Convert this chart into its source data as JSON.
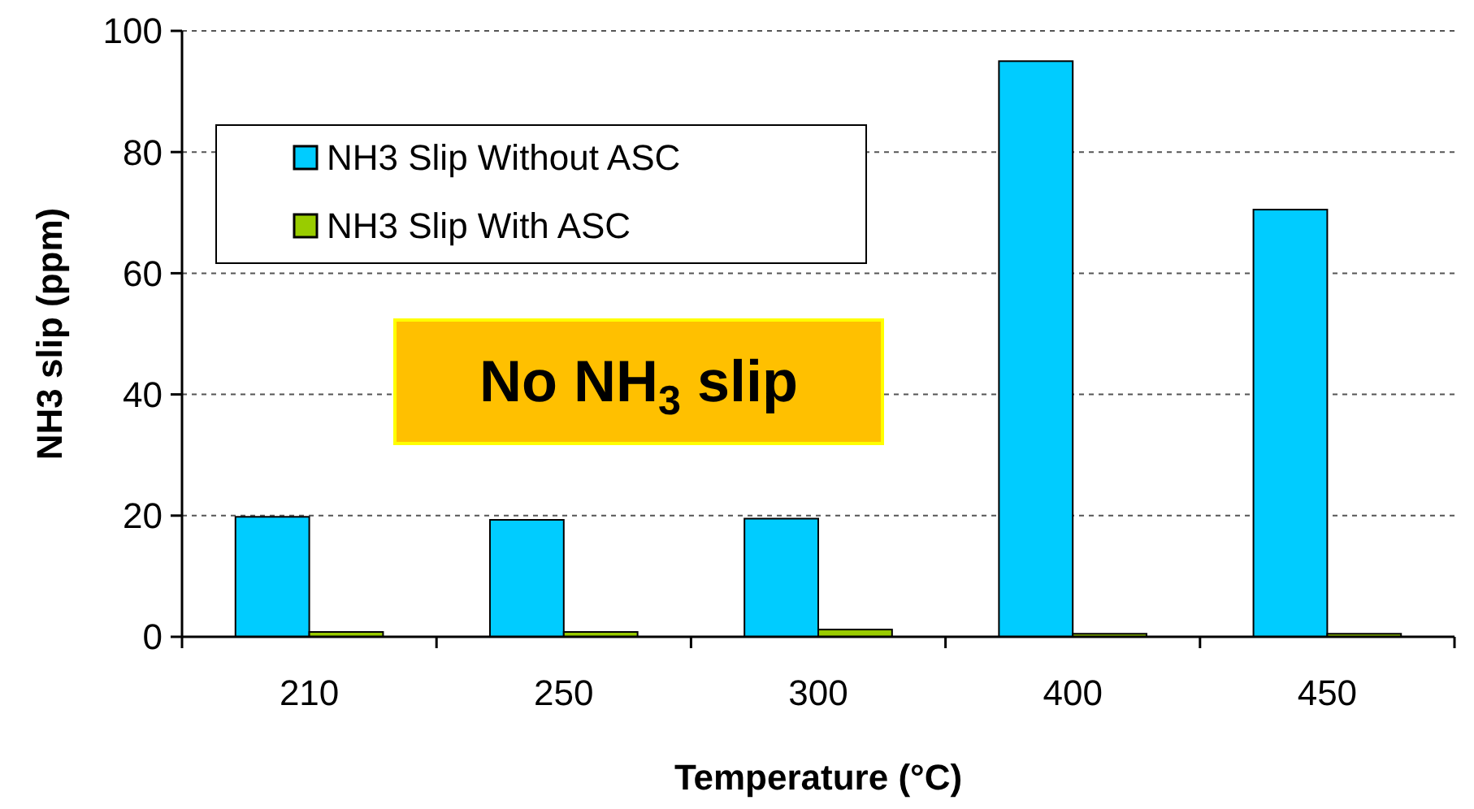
{
  "chart_data": {
    "type": "bar",
    "xlabel": "Temperature (°C)",
    "ylabel": "NH3 slip (ppm)",
    "categories": [
      "210",
      "250",
      "300",
      "400",
      "450"
    ],
    "series": [
      {
        "name": "NH3 Slip Without ASC",
        "color": "#00ccff",
        "values": [
          19.8,
          19.3,
          19.5,
          95,
          70.5
        ]
      },
      {
        "name": "NH3 Slip With ASC",
        "color": "#99cc00",
        "values": [
          0.8,
          0.8,
          1.2,
          0.5,
          0.5
        ]
      }
    ],
    "ylim": [
      0,
      100
    ],
    "yticks": [
      0,
      20,
      40,
      60,
      80,
      100
    ],
    "grid": "y",
    "legend": "top left",
    "annotations": [
      "No NH$_{3}$ slip"
    ]
  }
}
